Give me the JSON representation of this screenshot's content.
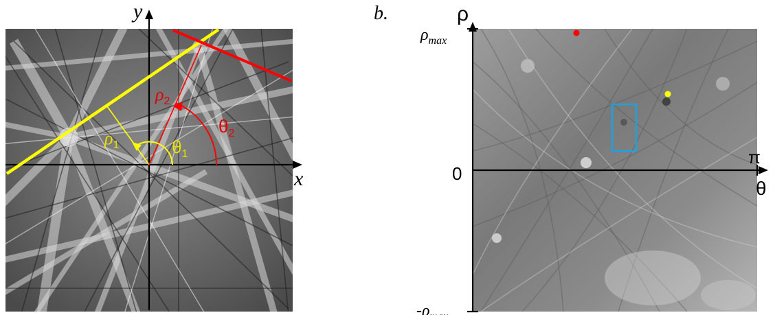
{
  "panel_b_label": "b.",
  "left": {
    "x_axis_label": "x",
    "y_axis_label": "y",
    "rho1": {
      "sym": "ρ",
      "sub": "1"
    },
    "theta1": {
      "sym": "θ",
      "sub": "1"
    },
    "rho2": {
      "sym": "ρ",
      "sub": "2"
    },
    "theta2": {
      "sym": "θ",
      "sub": "2"
    }
  },
  "right": {
    "y_axis_label": "ρ",
    "ymax": {
      "sym": "ρ",
      "sub": "max"
    },
    "ymin": {
      "sym": "-ρ",
      "sub": "max"
    },
    "zero": "0",
    "pi": "π",
    "x_axis_label": "θ"
  },
  "colors": {
    "line1": "#ffff00",
    "line2": "#ff0000",
    "line1_label": "#e8e000",
    "line2_label": "#e00000",
    "box": "#1aa3e0",
    "red_dot": "#ff0000",
    "yellow_dot": "#ffff00"
  }
}
